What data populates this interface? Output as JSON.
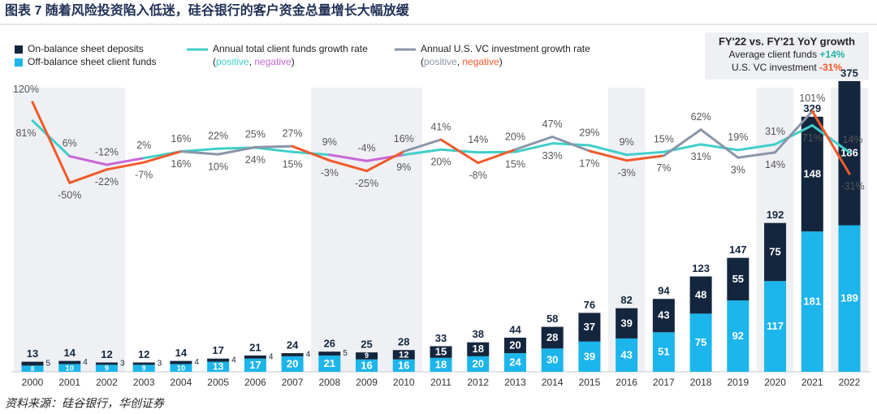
{
  "title": "图表 7 随着风险投资陷入低迷，硅谷银行的客户资金总量增长大幅放缓",
  "source": "资料来源：硅谷银行，华创证券",
  "chart_data": {
    "type": "bar",
    "stacked": true,
    "categories": [
      "2000",
      "2001",
      "2002",
      "2003",
      "2004",
      "2005",
      "2006",
      "2007",
      "2008",
      "2009",
      "2010",
      "2011",
      "2012",
      "2013",
      "2014",
      "2015",
      "2016",
      "2017",
      "2018",
      "2019",
      "2020",
      "2021",
      "2022"
    ],
    "ylim": [
      0,
      400
    ],
    "y2lim": [
      -60,
      130
    ],
    "totals": [
      13,
      14,
      12,
      12,
      14,
      17,
      21,
      24,
      26,
      25,
      28,
      33,
      38,
      44,
      58,
      76,
      82,
      94,
      123,
      147,
      192,
      329,
      375
    ],
    "legend_note": [
      "(",
      "positive",
      ", ",
      "negative",
      ")"
    ],
    "series": [
      {
        "name": "On-balance sheet deposits",
        "color": "#13263d",
        "values": [
          5,
          4,
          3,
          3,
          4,
          4,
          4,
          4,
          5,
          9,
          12,
          15,
          18,
          20,
          28,
          37,
          39,
          43,
          48,
          55,
          75,
          148,
          186
        ]
      },
      {
        "name": "Off-balance sheet client funds",
        "color": "#1cb5ec",
        "values": [
          8,
          10,
          9,
          9,
          10,
          13,
          17,
          20,
          21,
          16,
          16,
          18,
          20,
          24,
          30,
          39,
          43,
          51,
          75,
          92,
          117,
          181,
          189
        ]
      },
      {
        "name": "Annual total client funds growth rate",
        "type": "line",
        "axis": "y2",
        "color": "#40cfc9",
        "negative_color": "#c766d6",
        "values": [
          81,
          6,
          -12,
          2,
          16,
          22,
          24,
          15,
          9,
          -4,
          9,
          20,
          14,
          15,
          33,
          29,
          9,
          15,
          31,
          19,
          31,
          71,
          14
        ],
        "value_labels": [
          "81%",
          "6%",
          "-12%",
          "2%",
          "16%",
          "22%",
          "24%",
          "15%",
          "9%",
          "-4%",
          "9%",
          "20%",
          "14%",
          "15%",
          "33%",
          "29%",
          "9%",
          "15%",
          "31%",
          "19%",
          "31%",
          "71%",
          "14%"
        ]
      },
      {
        "name": "Annual U.S. VC investment growth rate",
        "type": "line",
        "axis": "y2",
        "color": "#8b95a8",
        "negative_color": "#f15a29",
        "values": [
          120,
          -50,
          -22,
          -7,
          16,
          10,
          25,
          27,
          -3,
          -25,
          16,
          41,
          -8,
          20,
          47,
          17,
          -3,
          7,
          62,
          3,
          14,
          101,
          -31
        ],
        "value_labels": [
          "120%",
          "-50%",
          "-22%",
          "-7%",
          "16%",
          "10%",
          "25%",
          "27%",
          "-3%",
          "-25%",
          "16%",
          "41%",
          "-8%",
          "20%",
          "47%",
          "17%",
          "-3%",
          "7%",
          "62%",
          "3%",
          "14%",
          "101%",
          "-31%"
        ]
      }
    ],
    "summary": {
      "title": "FY'22 vs. FY'21 YoY growth",
      "rows": [
        {
          "label": "Average client funds",
          "value": "+14%"
        },
        {
          "label": "U.S. VC investment",
          "value": "-31%"
        }
      ]
    }
  }
}
